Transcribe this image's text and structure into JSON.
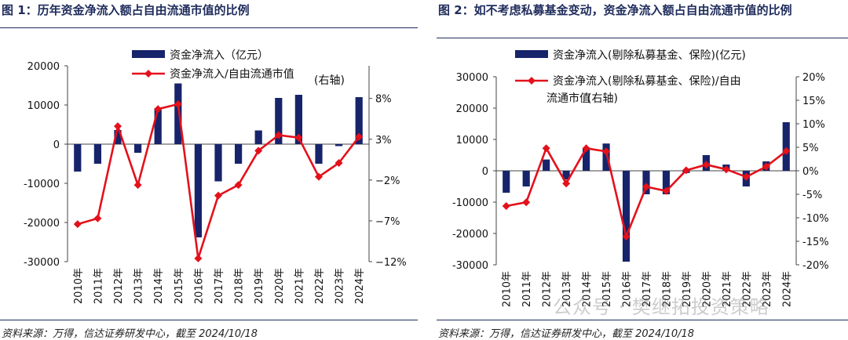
{
  "figure1": {
    "title": "图 1：历年资金净流入额占自由流通市值的比例",
    "source": "资料来源：万得，信达证券研发中心，截至 2024/10/18"
  },
  "figure2": {
    "title": "图 2：如不考虑私募基金变动，资金净流入额占自由流通市值的比例",
    "source": "资料来源：万得，信达证券研发中心，截至 2024/10/18"
  },
  "watermark": "公众号 · 樊继拓投资策略",
  "colors": {
    "bar": "#17246b",
    "line": "#e3111b",
    "rule": "#1f2c5c"
  },
  "chart_data": [
    {
      "type": "bar",
      "categories": [
        "2010年",
        "2011年",
        "2012年",
        "2013年",
        "2014年",
        "2015年",
        "2016年",
        "2017年",
        "2018年",
        "2019年",
        "2020年",
        "2021年",
        "2022年",
        "2023年",
        "2024年"
      ],
      "series": [
        {
          "name": "资金净流入（亿元）",
          "type": "bar",
          "axis": "left",
          "values": [
            -7000,
            -5000,
            3600,
            -2200,
            9200,
            15500,
            -23800,
            -9500,
            -5000,
            3500,
            11800,
            12600,
            -5000,
            -500,
            12000
          ]
        },
        {
          "name": "资金净流入/自由流通市值",
          "type": "line",
          "axis": "right",
          "values": [
            -7.4,
            -6.7,
            4.6,
            -2.6,
            6.7,
            7.3,
            -11.6,
            -3.9,
            -2.6,
            1.6,
            3.5,
            3.2,
            -1.6,
            0.1,
            3.3
          ]
        }
      ],
      "left_axis": {
        "ylim": [
          -30000,
          20000
        ],
        "ticks": [
          20000,
          10000,
          0,
          -10000,
          -20000,
          -30000
        ],
        "tick_labels": [
          "20000",
          "10000",
          "0",
          "-10000",
          "-20000",
          "-30000"
        ]
      },
      "right_axis": {
        "label": "(右轴)",
        "ylim": [
          -12,
          12
        ],
        "ticks": [
          8,
          3,
          -2,
          -7,
          -12
        ],
        "tick_labels": [
          "8%",
          "3%",
          "−2%",
          "−7%",
          "−12%"
        ]
      },
      "legend": {
        "placement": "top",
        "labels": [
          "资金净流入（亿元）",
          "资金净流入/自由流通市值"
        ]
      },
      "grid": false
    },
    {
      "type": "bar",
      "categories": [
        "2010年",
        "2011年",
        "2012年",
        "2013年",
        "2014年",
        "2015年",
        "2016年",
        "2017年",
        "2018年",
        "2019年",
        "2020年",
        "2021年",
        "2022年",
        "2023年",
        "2024年"
      ],
      "series": [
        {
          "name": "资金净流入(剔除私募基金、保险)(亿元)",
          "type": "bar",
          "axis": "left",
          "values": [
            -7000,
            -5000,
            3600,
            -2800,
            7000,
            8700,
            -29000,
            -7500,
            -7500,
            -700,
            5000,
            2000,
            -5000,
            3000,
            15500
          ]
        },
        {
          "name": "资金净流入(剔除私募基金、保险)/自由流通市值",
          "type": "line",
          "axis": "right",
          "values": [
            -7.5,
            -6.7,
            4.8,
            -2.7,
            4.8,
            4.1,
            -14.0,
            -3.4,
            -4.3,
            0.1,
            1.3,
            0.3,
            -1.3,
            0.9,
            4.2
          ]
        }
      ],
      "left_axis": {
        "ylim": [
          -30000,
          30000
        ],
        "ticks": [
          30000,
          20000,
          10000,
          0,
          -10000,
          -20000,
          -30000
        ],
        "tick_labels": [
          "30000",
          "20000",
          "10000",
          "0",
          "-10000",
          "-20000",
          "-30000"
        ]
      },
      "right_axis": {
        "label": "(右轴)",
        "ylim": [
          -20,
          20
        ],
        "ticks": [
          20,
          15,
          10,
          5,
          0,
          -5,
          -10,
          -15,
          -20
        ],
        "tick_labels": [
          "20%",
          "15%",
          "10%",
          "5%",
          "0%",
          "-5%",
          "-10%",
          "-15%",
          "-20%"
        ]
      },
      "legend": {
        "placement": "top",
        "labels": [
          "资金净流入(剔除私募基金、保险)(亿元)",
          "资金净流入(剔除私募基金、保险)/自由流通市值"
        ]
      },
      "grid": false
    }
  ]
}
